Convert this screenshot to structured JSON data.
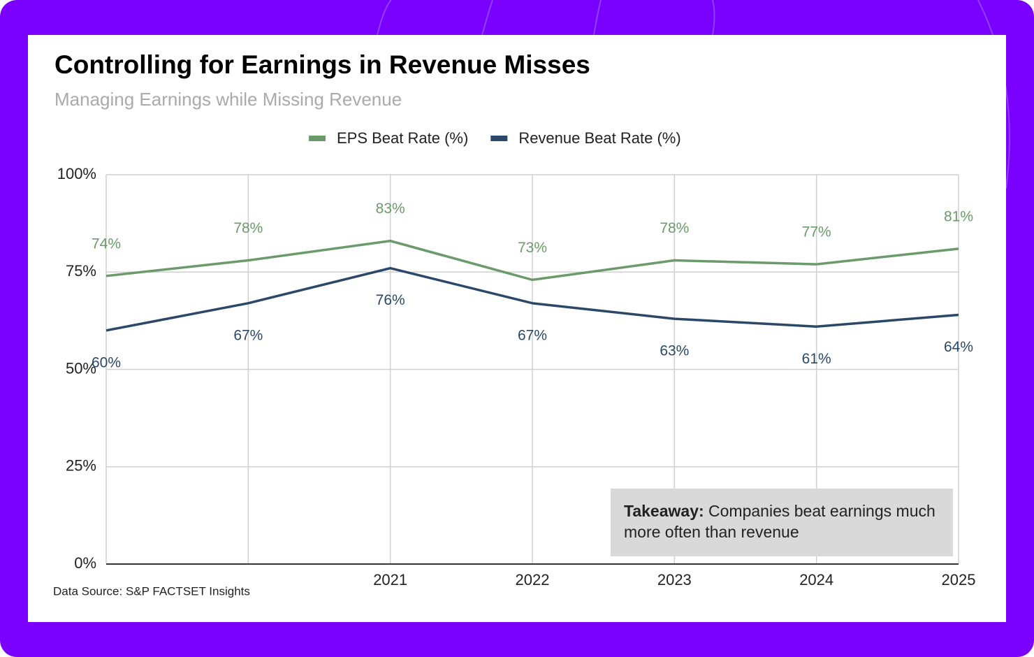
{
  "chart_data": {
    "type": "line",
    "title": "Controlling for Earnings in Revenue Misses",
    "subtitle": "Managing Earnings while Missing Revenue",
    "categories": [
      null,
      null,
      "2021",
      "2022",
      "2023",
      "2024",
      "2025"
    ],
    "series": [
      {
        "name": "EPS Beat Rate (%)",
        "color": "#6b9a6b",
        "values": [
          74,
          78,
          83,
          73,
          78,
          77,
          81
        ],
        "value_labels": [
          "74%",
          "78%",
          "83%",
          "73%",
          "78%",
          "77%",
          "81%"
        ]
      },
      {
        "name": "Revenue Beat Rate (%)",
        "color": "#2b4868",
        "values": [
          60,
          67,
          76,
          67,
          63,
          61,
          64
        ],
        "value_labels": [
          "60%",
          "67%",
          "76%",
          "67%",
          "63%",
          "61%",
          "64%"
        ]
      }
    ],
    "ylim": [
      0,
      100
    ],
    "yticks": [
      {
        "value": 0,
        "label": "0%"
      },
      {
        "value": 25,
        "label": "25%"
      },
      {
        "value": 50,
        "label": "50%"
      },
      {
        "value": 75,
        "label": "75%"
      },
      {
        "value": 100,
        "label": "100%"
      }
    ],
    "grid": true,
    "legend": "top",
    "annotation": {
      "label": "Takeaway:",
      "text": "Companies beat earnings much more often than revenue"
    },
    "source": "Data Source: S&P FACTSET Insights"
  }
}
